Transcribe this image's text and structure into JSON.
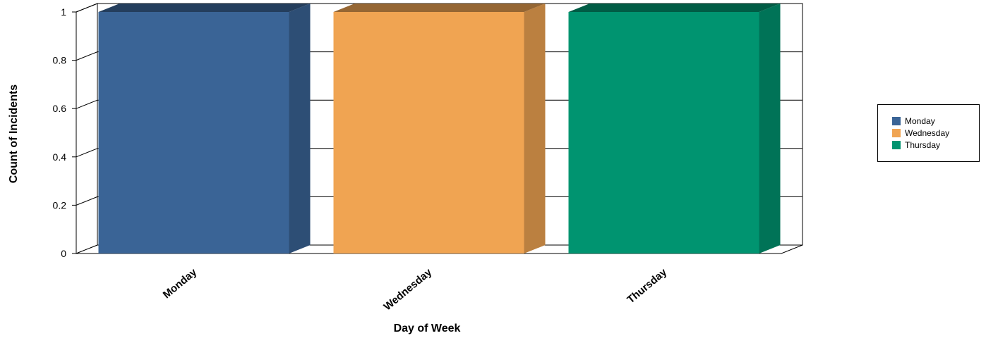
{
  "chart_data": {
    "type": "bar",
    "title": "",
    "xlabel": "Day of Week",
    "ylabel": "Count of Incidents",
    "categories": [
      "Monday",
      "Wednesday",
      "Thursday"
    ],
    "values": [
      1,
      1,
      1
    ],
    "ylim": [
      0,
      1
    ],
    "yticks": [
      "0",
      "0.2",
      "0.4",
      "0.6",
      "0.8",
      "1"
    ],
    "colors": [
      "#3a6496",
      "#f0a452",
      "#009470"
    ],
    "grid": true,
    "legend_position": "right",
    "legend": [
      "Monday",
      "Wednesday",
      "Thursday"
    ]
  }
}
